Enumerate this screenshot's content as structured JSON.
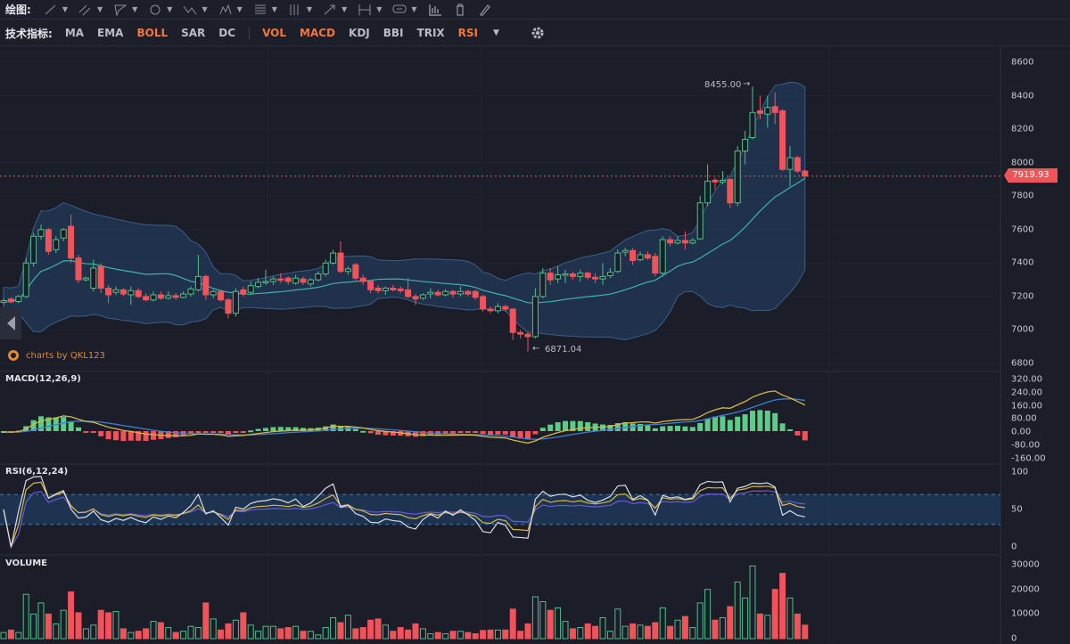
{
  "toolbar": {
    "draw_label": "绘图:",
    "draw_tools": [
      "line-tool",
      "parallel-line-tool",
      "polygon-tool",
      "circle-tool",
      "zigzag-tool",
      "pattern-tool",
      "fib-tool",
      "vertical-lines-tool",
      "arrow-tool",
      "measure-tool",
      "comment-tool"
    ],
    "indicator_label": "技术指标:",
    "main_indicators": [
      {
        "label": "MA",
        "active": false
      },
      {
        "label": "EMA",
        "active": false
      },
      {
        "label": "BOLL",
        "active": true
      },
      {
        "label": "SAR",
        "active": false
      },
      {
        "label": "DC",
        "active": false
      }
    ],
    "sub_indicators": [
      {
        "label": "VOL",
        "active": true
      },
      {
        "label": "MACD",
        "active": true
      },
      {
        "label": "KDJ",
        "active": false
      },
      {
        "label": "BBI",
        "active": false
      },
      {
        "label": "TRIX",
        "active": false
      },
      {
        "label": "RSI",
        "active": true
      }
    ]
  },
  "colors": {
    "up": "#4fbf8a",
    "down": "#f0545a",
    "accent": "#f0783c",
    "band": "#24426a",
    "mid": "#3fb3a8",
    "dif": "#d8b840",
    "dea": "#3c7fd8",
    "rsi6": "#d8dce6",
    "rsi12": "#d8b840",
    "rsi24": "#6a5ad8"
  },
  "watermark": "charts by QKL123",
  "chart_data": {
    "type": "candlestick",
    "current_price": "7919.93",
    "high_marker": "8455.00",
    "low_marker": "6871.04",
    "price_axis": {
      "ticks": [
        "8600",
        "8400",
        "8200",
        "8000",
        "7800",
        "7600",
        "7400",
        "7200",
        "7000",
        "6800"
      ],
      "range": [
        6800,
        8600
      ]
    },
    "candles": [
      [
        7165,
        7190,
        7150,
        7175
      ],
      [
        7185,
        7195,
        7160,
        7168
      ],
      [
        7170,
        7210,
        7160,
        7200
      ],
      [
        7200,
        7430,
        7190,
        7400
      ],
      [
        7400,
        7580,
        7380,
        7560
      ],
      [
        7560,
        7630,
        7540,
        7600
      ],
      [
        7600,
        7610,
        7450,
        7470
      ],
      [
        7480,
        7560,
        7460,
        7540
      ],
      [
        7550,
        7610,
        7530,
        7600
      ],
      [
        7620,
        7690,
        7400,
        7430
      ],
      [
        7430,
        7450,
        7280,
        7300
      ],
      [
        7300,
        7320,
        7290,
        7310
      ],
      [
        7250,
        7420,
        7230,
        7370
      ],
      [
        7380,
        7400,
        7220,
        7250
      ],
      [
        7250,
        7270,
        7160,
        7210
      ],
      [
        7225,
        7260,
        7210,
        7240
      ],
      [
        7240,
        7250,
        7200,
        7215
      ],
      [
        7210,
        7260,
        7150,
        7235
      ],
      [
        7235,
        7250,
        7190,
        7200
      ],
      [
        7200,
        7220,
        7170,
        7180
      ],
      [
        7180,
        7230,
        7170,
        7210
      ],
      [
        7210,
        7230,
        7180,
        7190
      ],
      [
        7190,
        7230,
        7180,
        7205
      ],
      [
        7205,
        7220,
        7180,
        7195
      ],
      [
        7195,
        7230,
        7190,
        7215
      ],
      [
        7215,
        7260,
        7200,
        7245
      ],
      [
        7240,
        7450,
        7230,
        7320
      ],
      [
        7320,
        7330,
        7180,
        7210
      ],
      [
        7210,
        7240,
        7190,
        7230
      ],
      [
        7230,
        7240,
        7170,
        7180
      ],
      [
        7180,
        7190,
        7070,
        7100
      ],
      [
        7100,
        7250,
        7080,
        7230
      ],
      [
        7240,
        7260,
        7200,
        7215
      ],
      [
        7225,
        7290,
        7210,
        7265
      ],
      [
        7260,
        7310,
        7250,
        7285
      ],
      [
        7285,
        7360,
        7270,
        7290
      ],
      [
        7290,
        7320,
        7270,
        7305
      ],
      [
        7305,
        7340,
        7280,
        7300
      ],
      [
        7310,
        7320,
        7270,
        7290
      ],
      [
        7280,
        7330,
        7270,
        7310
      ],
      [
        7305,
        7320,
        7270,
        7285
      ],
      [
        7275,
        7310,
        7260,
        7300
      ],
      [
        7300,
        7350,
        7290,
        7335
      ],
      [
        7335,
        7420,
        7320,
        7400
      ],
      [
        7400,
        7480,
        7390,
        7460
      ],
      [
        7460,
        7530,
        7340,
        7350
      ],
      [
        7350,
        7380,
        7330,
        7365
      ],
      [
        7390,
        7400,
        7290,
        7310
      ],
      [
        7310,
        7330,
        7270,
        7290
      ],
      [
        7290,
        7300,
        7220,
        7240
      ],
      [
        7250,
        7270,
        7220,
        7235
      ],
      [
        7235,
        7260,
        7210,
        7250
      ],
      [
        7250,
        7270,
        7230,
        7240
      ],
      [
        7245,
        7260,
        7220,
        7235
      ],
      [
        7240,
        7310,
        7190,
        7200
      ],
      [
        7200,
        7215,
        7150,
        7185
      ],
      [
        7190,
        7220,
        7180,
        7210
      ],
      [
        7215,
        7250,
        7190,
        7225
      ],
      [
        7225,
        7240,
        7200,
        7210
      ],
      [
        7210,
        7245,
        7200,
        7230
      ],
      [
        7230,
        7240,
        7195,
        7215
      ],
      [
        7215,
        7260,
        7200,
        7230
      ],
      [
        7230,
        7240,
        7200,
        7215
      ],
      [
        7230,
        7240,
        7180,
        7195
      ],
      [
        7200,
        7210,
        7110,
        7125
      ],
      [
        7125,
        7140,
        7100,
        7115
      ],
      [
        7115,
        7160,
        7100,
        7140
      ],
      [
        7140,
        7150,
        7110,
        7125
      ],
      [
        7125,
        7130,
        6940,
        6985
      ],
      [
        6985,
        7000,
        6950,
        6975
      ],
      [
        6975,
        6990,
        6871.04,
        6960
      ],
      [
        6960,
        7250,
        6950,
        7200
      ],
      [
        7200,
        7370,
        7190,
        7340
      ],
      [
        7340,
        7370,
        7270,
        7300
      ],
      [
        7305,
        7380,
        7280,
        7330
      ],
      [
        7330,
        7360,
        7280,
        7335
      ],
      [
        7335,
        7350,
        7300,
        7320
      ],
      [
        7320,
        7360,
        7290,
        7340
      ],
      [
        7340,
        7350,
        7300,
        7315
      ],
      [
        7315,
        7340,
        7280,
        7305
      ],
      [
        7305,
        7400,
        7270,
        7320
      ],
      [
        7325,
        7370,
        7310,
        7345
      ],
      [
        7350,
        7480,
        7340,
        7460
      ],
      [
        7465,
        7490,
        7440,
        7475
      ],
      [
        7475,
        7490,
        7390,
        7415
      ],
      [
        7420,
        7470,
        7410,
        7450
      ],
      [
        7450,
        7470,
        7420,
        7430
      ],
      [
        7440,
        7460,
        7320,
        7340
      ],
      [
        7340,
        7560,
        7320,
        7540
      ],
      [
        7540,
        7560,
        7500,
        7520
      ],
      [
        7520,
        7560,
        7510,
        7535
      ],
      [
        7535,
        7590,
        7480,
        7520
      ],
      [
        7520,
        7550,
        7510,
        7535
      ],
      [
        7545,
        7800,
        7540,
        7760
      ],
      [
        7760,
        7990,
        7740,
        7890
      ],
      [
        7895,
        7910,
        7840,
        7885
      ],
      [
        7885,
        7950,
        7870,
        7895
      ],
      [
        7900,
        7910,
        7730,
        7760
      ],
      [
        7760,
        8100,
        7740,
        8070
      ],
      [
        8070,
        8190,
        7990,
        8140
      ],
      [
        8150,
        8455,
        8140,
        8300
      ],
      [
        8310,
        8400,
        8260,
        8295
      ],
      [
        8290,
        8400,
        8210,
        8330
      ],
      [
        8335,
        8420,
        8230,
        8300
      ],
      [
        8310,
        8320,
        7950,
        7960
      ],
      [
        7960,
        8100,
        7860,
        8030
      ],
      [
        8030,
        8040,
        7940,
        7950
      ],
      [
        7950,
        7960,
        7910,
        7919.93
      ]
    ],
    "volume": [
      2500,
      3500,
      2500,
      18000,
      10000,
      14500,
      10000,
      6000,
      11500,
      19000,
      10500,
      4000,
      5500,
      11500,
      10500,
      11000,
      4000,
      2500,
      3000,
      4000,
      7000,
      6500,
      4500,
      2500,
      3000,
      5000,
      4500,
      14500,
      8000,
      3500,
      6000,
      7500,
      10500,
      5500,
      3000,
      5000,
      5000,
      4000,
      4500,
      5000,
      3000,
      3000,
      1500,
      4500,
      8500,
      6500,
      9500,
      4000,
      4500,
      7500,
      8000,
      5500,
      3000,
      4500,
      3500,
      6000,
      4000,
      2000,
      2500,
      2000,
      3000,
      3000,
      2500,
      2000,
      3300,
      3500,
      3500,
      3500,
      12000,
      3000,
      6000,
      17000,
      15000,
      11500,
      12500,
      7000,
      4000,
      4500,
      6000,
      5000,
      8500,
      3000,
      12000,
      5000,
      6000,
      5500,
      5000,
      6500,
      12500,
      5000,
      7500,
      9000,
      4500,
      14500,
      20000,
      7500,
      8500,
      13000,
      23000,
      16500,
      29500,
      10000,
      9500,
      20000,
      26500,
      16500,
      10000,
      5500
    ],
    "boll": {
      "period": 20,
      "k": 2
    },
    "macd": {
      "title": "MACD(12,26,9)",
      "params": [
        12,
        26,
        9
      ],
      "ticks": [
        "320.00",
        "240.00",
        "160.00",
        "80.00",
        "0.00",
        "-80.00",
        "-160.00"
      ],
      "range": [
        -160,
        320
      ]
    },
    "rsi": {
      "title": "RSI(6,12,24)",
      "params": [
        6,
        12,
        24
      ],
      "ticks": [
        "100",
        "50",
        "0"
      ],
      "bands": [
        30,
        70
      ]
    },
    "vol": {
      "title": "VOLUME",
      "ticks": [
        "30000",
        "20000",
        "10000",
        "0"
      ],
      "range": [
        0,
        30000
      ]
    }
  }
}
